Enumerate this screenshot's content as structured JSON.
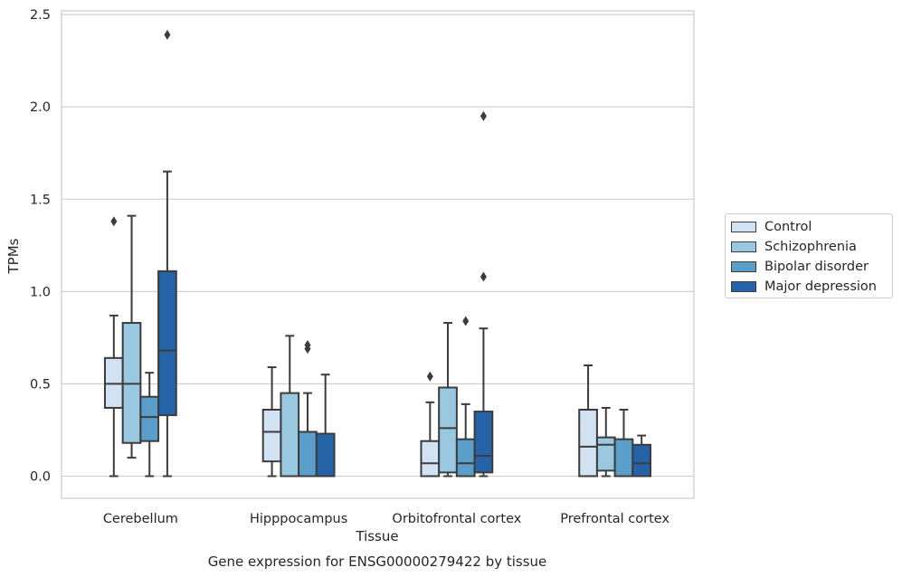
{
  "chart_data": {
    "type": "boxplot",
    "title": "",
    "caption": "Gene expression for ENSG00000279422 by tissue",
    "xlabel": "Tissue",
    "ylabel": "TPMs",
    "ylim": [
      -0.12,
      2.52
    ],
    "yticks": [
      "0.0",
      "0.5",
      "1.0",
      "1.5",
      "2.0",
      "2.5"
    ],
    "ytick_values": [
      0,
      0.5,
      1.0,
      1.5,
      2.0,
      2.5
    ],
    "grid": "horizontal",
    "legend_position": "right",
    "categories": [
      "Cerebellum",
      "Hipppocampus",
      "Orbitofrontal cortex",
      "Prefrontal cortex"
    ],
    "series": [
      {
        "name": "Control",
        "color": "#d1e2f2",
        "boxes": [
          {
            "whislo": 0.0,
            "q1": 0.37,
            "med": 0.5,
            "q3": 0.64,
            "whishi": 0.87,
            "fliers": [
              1.38
            ]
          },
          {
            "whislo": 0.0,
            "q1": 0.08,
            "med": 0.24,
            "q3": 0.36,
            "whishi": 0.59,
            "fliers": []
          },
          {
            "whislo": 0.0,
            "q1": 0.0,
            "med": 0.07,
            "q3": 0.19,
            "whishi": 0.4,
            "fliers": [
              0.54
            ]
          },
          {
            "whislo": 0.0,
            "q1": 0.0,
            "med": 0.16,
            "q3": 0.36,
            "whishi": 0.6,
            "fliers": []
          }
        ]
      },
      {
        "name": "Schizophrenia",
        "color": "#9ac8e0",
        "boxes": [
          {
            "whislo": 0.1,
            "q1": 0.18,
            "med": 0.5,
            "q3": 0.83,
            "whishi": 1.41,
            "fliers": []
          },
          {
            "whislo": 0.0,
            "q1": 0.0,
            "med": 0.0,
            "q3": 0.45,
            "whishi": 0.76,
            "fliers": []
          },
          {
            "whislo": 0.0,
            "q1": 0.02,
            "med": 0.26,
            "q3": 0.48,
            "whishi": 0.83,
            "fliers": []
          },
          {
            "whislo": 0.0,
            "q1": 0.03,
            "med": 0.17,
            "q3": 0.21,
            "whishi": 0.37,
            "fliers": []
          }
        ]
      },
      {
        "name": "Bipolar disorder",
        "color": "#5a9ec9",
        "boxes": [
          {
            "whislo": 0.0,
            "q1": 0.19,
            "med": 0.32,
            "q3": 0.43,
            "whishi": 0.56,
            "fliers": []
          },
          {
            "whislo": 0.0,
            "q1": 0.0,
            "med": 0.0,
            "q3": 0.24,
            "whishi": 0.45,
            "fliers": [
              0.69,
              0.71
            ]
          },
          {
            "whislo": 0.0,
            "q1": 0.0,
            "med": 0.07,
            "q3": 0.2,
            "whishi": 0.39,
            "fliers": [
              0.84
            ]
          },
          {
            "whislo": 0.0,
            "q1": 0.0,
            "med": 0.0,
            "q3": 0.2,
            "whishi": 0.36,
            "fliers": []
          }
        ]
      },
      {
        "name": "Major depression",
        "color": "#2563a8",
        "boxes": [
          {
            "whislo": 0.0,
            "q1": 0.33,
            "med": 0.68,
            "q3": 1.11,
            "whishi": 1.65,
            "fliers": [
              2.39
            ]
          },
          {
            "whislo": 0.0,
            "q1": 0.0,
            "med": 0.0,
            "q3": 0.23,
            "whishi": 0.55,
            "fliers": []
          },
          {
            "whislo": 0.0,
            "q1": 0.02,
            "med": 0.11,
            "q3": 0.35,
            "whishi": 0.8,
            "fliers": [
              1.08,
              1.95
            ]
          },
          {
            "whislo": 0.0,
            "q1": 0.0,
            "med": 0.07,
            "q3": 0.17,
            "whishi": 0.22,
            "fliers": []
          }
        ]
      }
    ]
  }
}
